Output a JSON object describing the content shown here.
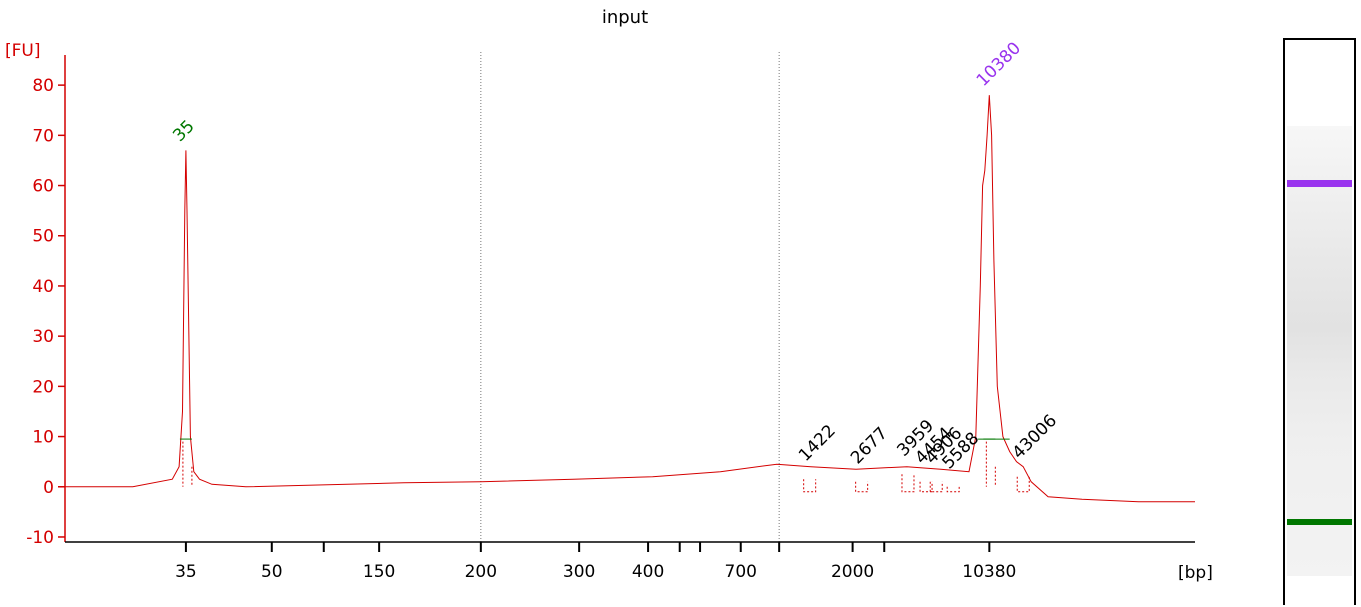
{
  "chart_data": {
    "type": "line",
    "title": "input",
    "ylabel": "[FU]",
    "xlabel": "[bp]",
    "ylim": [
      -11,
      86
    ],
    "yticks": [
      -10,
      0,
      10,
      20,
      30,
      40,
      50,
      60,
      70,
      80
    ],
    "xticks": [
      {
        "label": "35",
        "pos": 0.107
      },
      {
        "label": "50",
        "pos": 0.183
      },
      {
        "label": "",
        "pos": 0.229
      },
      {
        "label": "150",
        "pos": 0.278
      },
      {
        "label": "200",
        "pos": 0.368
      },
      {
        "label": "300",
        "pos": 0.455
      },
      {
        "label": "400",
        "pos": 0.516
      },
      {
        "label": "",
        "pos": 0.544
      },
      {
        "label": "",
        "pos": 0.562
      },
      {
        "label": "700",
        "pos": 0.598
      },
      {
        "label": "",
        "pos": 0.632
      },
      {
        "label": "2000",
        "pos": 0.697
      },
      {
        "label": "",
        "pos": 0.725
      },
      {
        "label": "10380",
        "pos": 0.818
      }
    ],
    "marker_peaks": [
      {
        "label": "35",
        "pos": 0.107,
        "height": 67,
        "color": "#007700"
      },
      {
        "label": "10380",
        "pos": 0.818,
        "height": 78,
        "color": "#9933ee"
      }
    ],
    "peaks": [
      {
        "label": "1422",
        "pos": 0.659,
        "height": 4.5
      },
      {
        "label": "2677",
        "pos": 0.705,
        "height": 4
      },
      {
        "label": "3959",
        "pos": 0.746,
        "height": 5.5
      },
      {
        "label": "4454",
        "pos": 0.762,
        "height": 4
      },
      {
        "label": "4906",
        "pos": 0.771,
        "height": 4
      },
      {
        "label": "5588",
        "pos": 0.786,
        "height": 3
      },
      {
        "label": "43006",
        "pos": 0.848,
        "height": 5
      }
    ],
    "trace": [
      [
        0.0,
        0
      ],
      [
        0.06,
        0
      ],
      [
        0.095,
        1.5
      ],
      [
        0.101,
        4
      ],
      [
        0.104,
        15
      ],
      [
        0.106,
        55
      ],
      [
        0.107,
        67
      ],
      [
        0.108,
        55
      ],
      [
        0.111,
        10
      ],
      [
        0.114,
        3
      ],
      [
        0.119,
        1.5
      ],
      [
        0.13,
        0.5
      ],
      [
        0.16,
        0
      ],
      [
        0.25,
        0.5
      ],
      [
        0.3,
        0.8
      ],
      [
        0.368,
        1
      ],
      [
        0.45,
        1.5
      ],
      [
        0.52,
        2
      ],
      [
        0.58,
        3
      ],
      [
        0.63,
        4.5
      ],
      [
        0.66,
        4
      ],
      [
        0.7,
        3.5
      ],
      [
        0.745,
        4
      ],
      [
        0.775,
        3.5
      ],
      [
        0.8,
        3
      ],
      [
        0.806,
        10
      ],
      [
        0.81,
        40
      ],
      [
        0.812,
        60
      ],
      [
        0.814,
        63
      ],
      [
        0.816,
        70
      ],
      [
        0.818,
        78
      ],
      [
        0.82,
        70
      ],
      [
        0.822,
        45
      ],
      [
        0.825,
        20
      ],
      [
        0.83,
        10
      ],
      [
        0.836,
        7
      ],
      [
        0.842,
        5
      ],
      [
        0.848,
        4
      ],
      [
        0.855,
        1
      ],
      [
        0.87,
        -2
      ],
      [
        0.9,
        -2.5
      ],
      [
        0.95,
        -3
      ],
      [
        1.0,
        -3
      ]
    ]
  },
  "gel": {
    "upper_marker_color": "#9933ee",
    "lower_marker_color": "#007700"
  }
}
